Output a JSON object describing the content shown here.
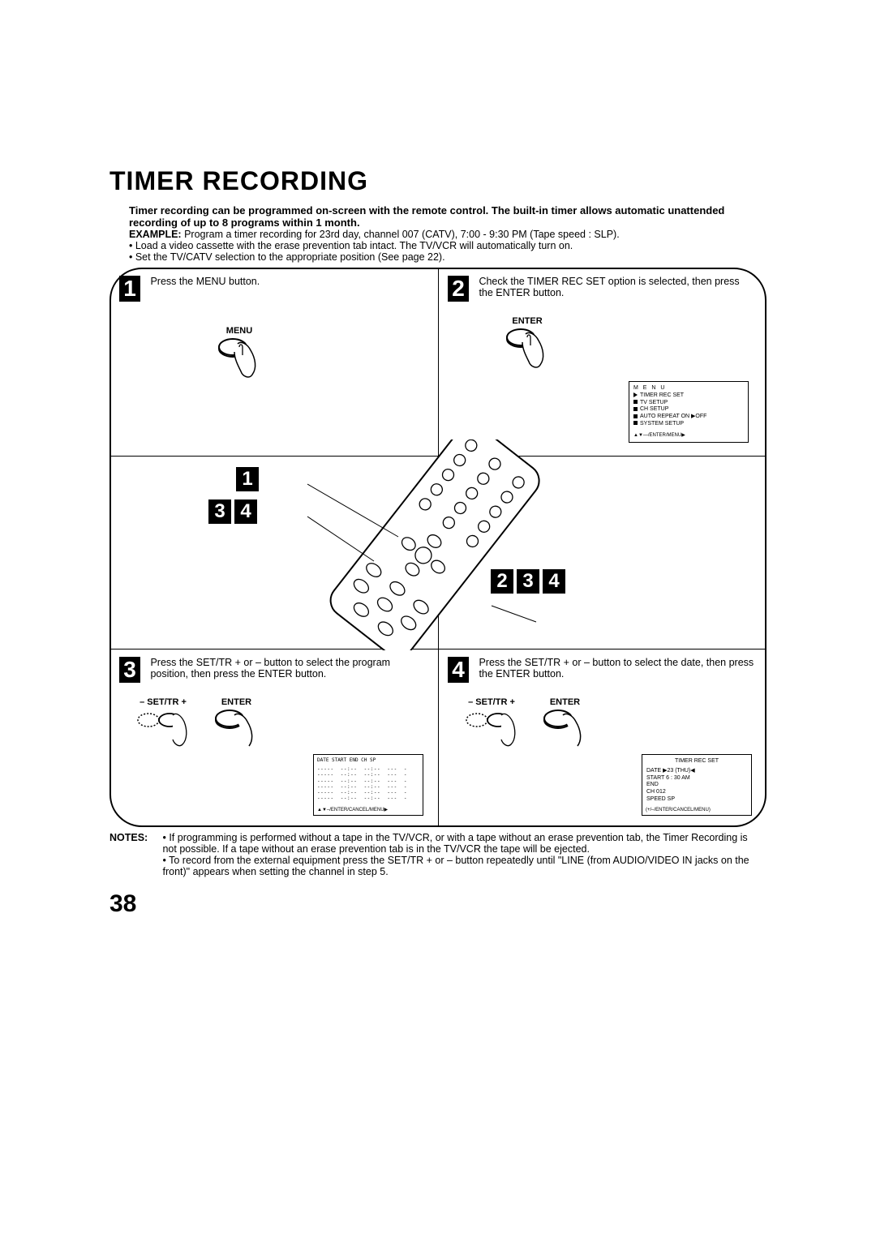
{
  "page": {
    "number": "38",
    "title": "TIMER RECORDING",
    "intro": "Timer recording can be programmed on-screen with the remote control. The built-in timer allows automatic unattended recording of up to 8 programs within 1 month.",
    "example_label": "EXAMPLE:",
    "example_text": " Program a timer recording for 23rd day, channel 007 (CATV), 7:00 - 9:30 PM (Tape speed : SLP).",
    "bullet1": "• Load a video cassette with the erase prevention tab intact. The TV/VCR will automatically turn on.",
    "bullet2": "• Set the TV/CATV selection to the appropriate position (See page 22)."
  },
  "steps": {
    "s1": {
      "num": "1",
      "text": "Press the MENU button.",
      "button_label": "MENU"
    },
    "s2": {
      "num": "2",
      "text": "Check the TIMER REC SET option is selected, then press the ENTER button.",
      "button_label": "ENTER"
    },
    "s3": {
      "num": "3",
      "text": "Press the SET/TR + or – button to select the program position, then press the ENTER button.",
      "settr_label": "– SET/TR +",
      "enter_label": "ENTER"
    },
    "s4": {
      "num": "4",
      "text": "Press the SET/TR + or – button to select the date, then press the ENTER button.",
      "settr_label": "– SET/TR +",
      "enter_label": "ENTER"
    }
  },
  "center_badges": {
    "left_top": "1",
    "left_row": [
      "3",
      "4"
    ],
    "right_row": [
      "2",
      "3",
      "4"
    ]
  },
  "menu_box": {
    "title": "M E N U",
    "items": [
      "TIMER REC SET",
      "TV SETUP",
      "CH SETUP",
      "AUTO REPEAT   ON ▶OFF",
      "SYSTEM  SETUP"
    ],
    "footer": "▲▼—/ENTER/MENU▶"
  },
  "timerlist_box": {
    "header": "DATE   START   END   CH   SP",
    "rows": [
      "-----  --:--  --:--  ---  -",
      "-----  --:--  --:--  ---  -",
      "-----  --:--  --:--  ---  -",
      "-----  --:--  --:--  ---  -",
      "-----  --:--  --:--  ---  -",
      "-----  --:--  --:--  ---  -"
    ],
    "footer": "▲▼–/ENTER/CANCEL/MENU▶"
  },
  "timerset_box": {
    "title": "TIMER  REC  SET",
    "rows": [
      "DATE    ▶23 (THU)◀",
      "START     6 : 30 AM",
      "END",
      "CH       012",
      "SPEED    SP"
    ],
    "footer": "(+/–/ENTER/CANCEL/MENU)"
  },
  "notes": {
    "label": "NOTES:",
    "n1": "• If programming is performed without a tape in the TV/VCR, or with a tape without an erase prevention tab, the Timer Recording is not possible. If a tape without an erase prevention tab is in the TV/VCR the tape will be ejected.",
    "n2": "• To record from the external equipment press the SET/TR + or – button repeatedly until \"LINE (from AUDIO/VIDEO IN jacks on the front)\" appears when setting the channel in step 5."
  },
  "colors": {
    "fg": "#000000",
    "bg": "#ffffff"
  }
}
